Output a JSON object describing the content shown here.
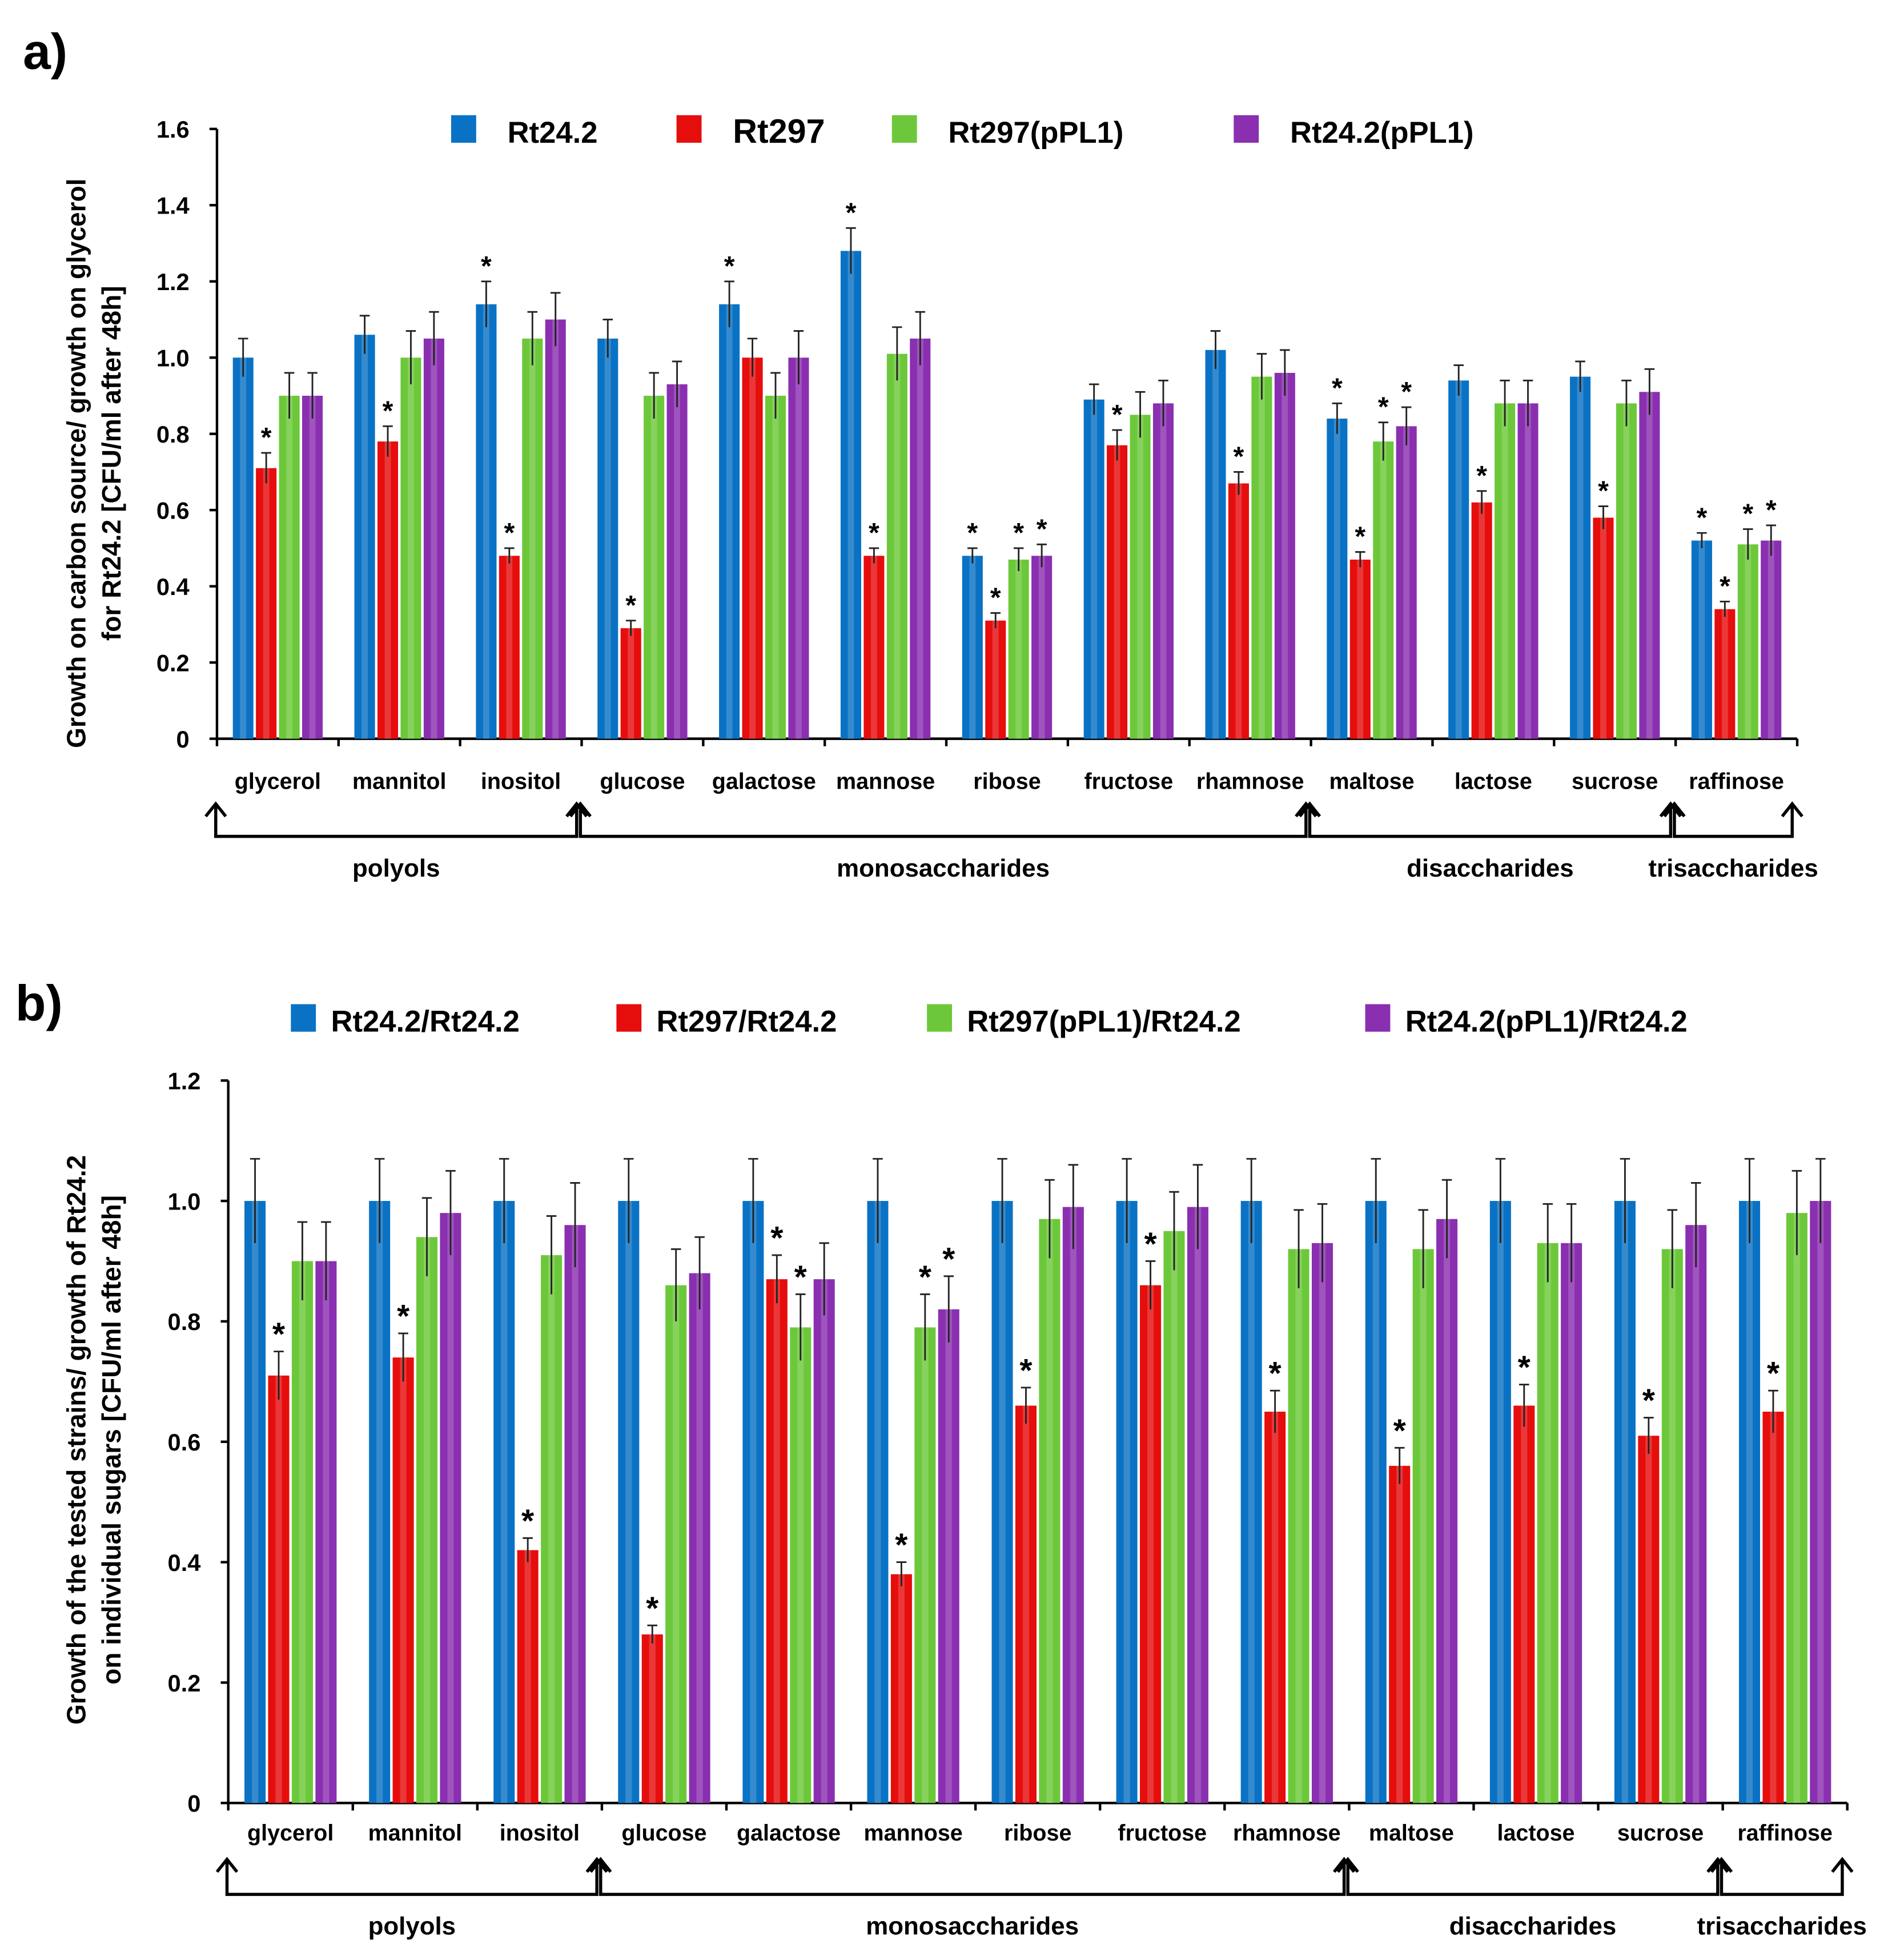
{
  "chart_data": [
    {
      "type": "bar",
      "panel_label": "a)",
      "ylabel_lines": [
        "Growth on carbon source/ growth on glycerol",
        "for Rt24.2 [CFU/ml after 48h]"
      ],
      "xlabel": "",
      "ylim": [
        0,
        1.6
      ],
      "yticks": [
        "0",
        "0.2",
        "0.4",
        "0.6",
        "0.8",
        "1.0",
        "1.2",
        "1.4",
        "1.6"
      ],
      "legend_position": "top",
      "categories": [
        "glycerol",
        "mannitol",
        "inositol",
        "glucose",
        "galactose",
        "mannose",
        "ribose",
        "fructose",
        "rhamnose",
        "maltose",
        "lactose",
        "sucrose",
        "raffinose"
      ],
      "groups": [
        {
          "label": "polyols",
          "from": 0,
          "to": 2
        },
        {
          "label": "monosaccharides",
          "from": 3,
          "to": 8
        },
        {
          "label": "disaccharides",
          "from": 9,
          "to": 11
        },
        {
          "label": "trisaccharides",
          "from": 12,
          "to": 12
        }
      ],
      "series": [
        {
          "name": "Rt24.2",
          "color": "#0a72c4",
          "values": [
            1.0,
            1.06,
            1.14,
            1.05,
            1.14,
            1.28,
            0.48,
            0.89,
            1.02,
            0.84,
            0.94,
            0.95,
            0.52
          ],
          "errors": [
            0.05,
            0.05,
            0.06,
            0.05,
            0.06,
            0.06,
            0.02,
            0.04,
            0.05,
            0.04,
            0.04,
            0.04,
            0.02
          ],
          "significant": [
            false,
            false,
            true,
            false,
            true,
            true,
            true,
            false,
            false,
            true,
            false,
            false,
            true
          ]
        },
        {
          "name": "Rt297",
          "color": "#e60d0d",
          "values": [
            0.71,
            0.78,
            0.48,
            0.29,
            1.0,
            0.48,
            0.31,
            0.77,
            0.67,
            0.47,
            0.62,
            0.58,
            0.34
          ],
          "errors": [
            0.04,
            0.04,
            0.02,
            0.02,
            0.05,
            0.02,
            0.02,
            0.04,
            0.03,
            0.02,
            0.03,
            0.03,
            0.02
          ],
          "significant": [
            true,
            true,
            true,
            true,
            false,
            true,
            true,
            true,
            true,
            true,
            true,
            true,
            true
          ]
        },
        {
          "name": "Rt297(pPL1)",
          "color": "#6cc83a",
          "values": [
            0.9,
            1.0,
            1.05,
            0.9,
            0.9,
            1.01,
            0.47,
            0.85,
            0.95,
            0.78,
            0.88,
            0.88,
            0.51
          ],
          "errors": [
            0.06,
            0.07,
            0.07,
            0.06,
            0.06,
            0.07,
            0.03,
            0.06,
            0.06,
            0.05,
            0.06,
            0.06,
            0.04
          ],
          "significant": [
            false,
            false,
            false,
            false,
            false,
            false,
            true,
            false,
            false,
            true,
            false,
            false,
            true
          ]
        },
        {
          "name": "Rt24.2(pPL1)",
          "color": "#8a2fb0",
          "values": [
            0.9,
            1.05,
            1.1,
            0.93,
            1.0,
            1.05,
            0.48,
            0.88,
            0.96,
            0.82,
            0.88,
            0.91,
            0.52
          ],
          "errors": [
            0.06,
            0.07,
            0.07,
            0.06,
            0.07,
            0.07,
            0.03,
            0.06,
            0.06,
            0.05,
            0.06,
            0.06,
            0.04
          ],
          "significant": [
            false,
            false,
            false,
            false,
            false,
            false,
            true,
            false,
            false,
            true,
            false,
            false,
            true
          ]
        }
      ]
    },
    {
      "type": "bar",
      "panel_label": "b)",
      "ylabel_lines": [
        "Growth of the tested strains/ growth of Rt24.2",
        "on individual sugars [CFU/ml after 48h]"
      ],
      "xlabel": "",
      "ylim": [
        0,
        1.2
      ],
      "yticks": [
        "0",
        "0.2",
        "0.4",
        "0.6",
        "0.8",
        "1.0",
        "1.2"
      ],
      "legend_position": "top",
      "categories": [
        "glycerol",
        "mannitol",
        "inositol",
        "glucose",
        "galactose",
        "mannose",
        "ribose",
        "fructose",
        "rhamnose",
        "maltose",
        "lactose",
        "sucrose",
        "raffinose"
      ],
      "groups": [
        {
          "label": "polyols",
          "from": 0,
          "to": 2
        },
        {
          "label": "monosaccharides",
          "from": 3,
          "to": 8
        },
        {
          "label": "disaccharides",
          "from": 9,
          "to": 11
        },
        {
          "label": "trisaccharides",
          "from": 12,
          "to": 12
        }
      ],
      "series": [
        {
          "name": "Rt24.2/Rt24.2",
          "color": "#0a72c4",
          "values": [
            1,
            1,
            1,
            1,
            1,
            1,
            1,
            1,
            1,
            1,
            1,
            1,
            1
          ],
          "errors": [
            0.07,
            0.07,
            0.07,
            0.07,
            0.07,
            0.07,
            0.07,
            0.07,
            0.07,
            0.07,
            0.07,
            0.07,
            0.07
          ],
          "significant": [
            false,
            false,
            false,
            false,
            false,
            false,
            false,
            false,
            false,
            false,
            false,
            false,
            false
          ]
        },
        {
          "name": "Rt297/Rt24.2",
          "color": "#e60d0d",
          "values": [
            0.71,
            0.74,
            0.42,
            0.28,
            0.87,
            0.38,
            0.66,
            0.86,
            0.65,
            0.56,
            0.66,
            0.61,
            0.65
          ],
          "errors": [
            0.04,
            0.04,
            0.02,
            0.015,
            0.04,
            0.02,
            0.03,
            0.04,
            0.035,
            0.03,
            0.035,
            0.03,
            0.035
          ],
          "significant": [
            true,
            true,
            true,
            true,
            true,
            true,
            true,
            true,
            true,
            true,
            true,
            true,
            true
          ]
        },
        {
          "name": "Rt297(pPL1)/Rt24.2",
          "color": "#6cc83a",
          "values": [
            0.9,
            0.94,
            0.91,
            0.86,
            0.79,
            0.79,
            0.97,
            0.95,
            0.92,
            0.92,
            0.93,
            0.92,
            0.98
          ],
          "errors": [
            0.065,
            0.065,
            0.065,
            0.06,
            0.055,
            0.055,
            0.065,
            0.065,
            0.065,
            0.065,
            0.065,
            0.065,
            0.07
          ],
          "significant": [
            false,
            false,
            false,
            false,
            true,
            true,
            false,
            false,
            false,
            false,
            false,
            false,
            false
          ]
        },
        {
          "name": "Rt24.2(pPL1)/Rt24.2",
          "color": "#8a2fb0",
          "values": [
            0.9,
            0.98,
            0.96,
            0.88,
            0.87,
            0.82,
            0.99,
            0.99,
            0.93,
            0.97,
            0.93,
            0.96,
            1.0
          ],
          "errors": [
            0.065,
            0.07,
            0.07,
            0.06,
            0.06,
            0.055,
            0.07,
            0.07,
            0.065,
            0.065,
            0.065,
            0.07,
            0.07
          ],
          "significant": [
            false,
            false,
            false,
            false,
            false,
            true,
            false,
            false,
            false,
            false,
            false,
            false,
            false
          ]
        }
      ]
    }
  ]
}
